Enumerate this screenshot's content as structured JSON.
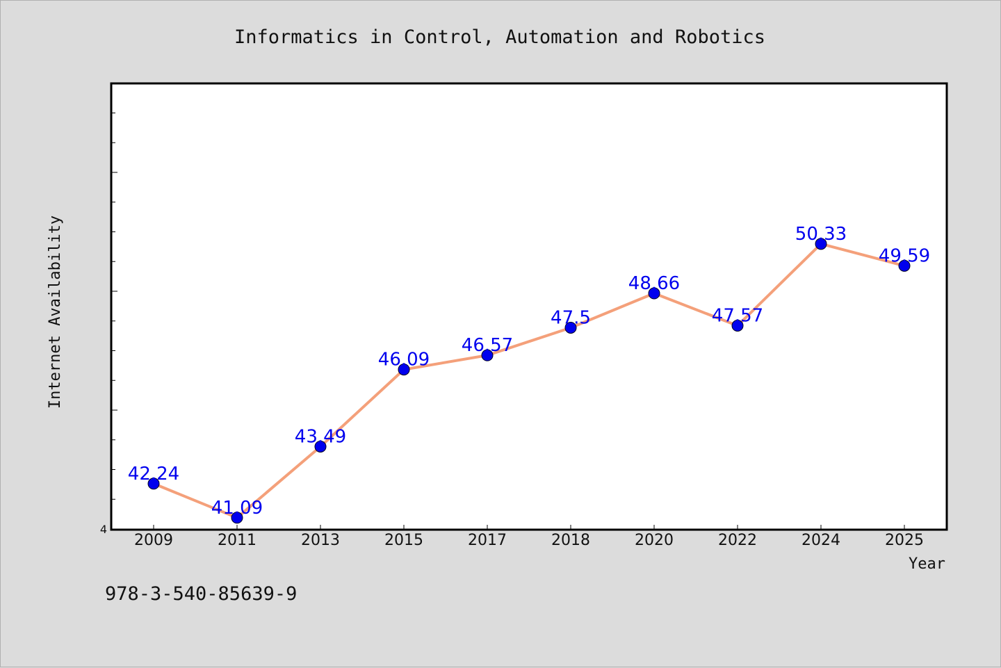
{
  "chart_data": {
    "type": "line",
    "title": "Informatics in Control, Automation and Robotics",
    "xlabel": "Year",
    "ylabel": "Internet Availability",
    "ymin_label": "4",
    "categories": [
      "2009",
      "2011",
      "2013",
      "2015",
      "2017",
      "2018",
      "2020",
      "2022",
      "2024",
      "2025"
    ],
    "series": [
      {
        "values": [
          42.24,
          41.09,
          43.49,
          46.09,
          46.57,
          47.5,
          48.66,
          47.57,
          50.33,
          49.59
        ],
        "labels": [
          "42.24",
          "41.09",
          "43.49",
          "46.09",
          "46.57",
          "47.5",
          "48.66",
          "47.57",
          "50.33",
          "49.59"
        ]
      }
    ],
    "ylim": [
      40.71,
      55.72
    ],
    "grid": false,
    "legend": "none",
    "colors": {
      "line": "#f4a07a",
      "marker": "#0000ee",
      "label": "#0000ee",
      "plot_background": "#ffffff",
      "page_background": "#dcdcdc"
    }
  },
  "footer": {
    "isbn": "978-3-540-85639-9"
  }
}
